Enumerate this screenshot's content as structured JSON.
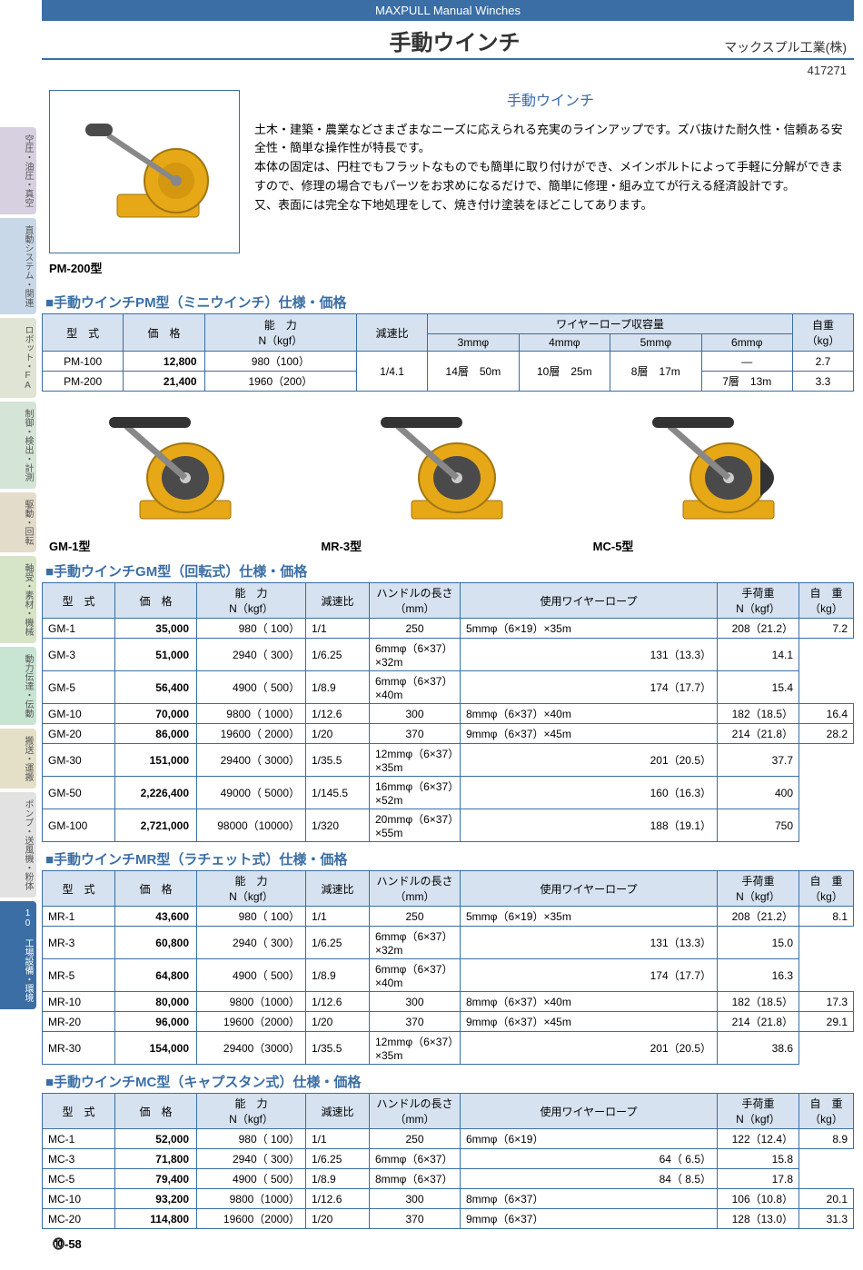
{
  "header": {
    "eng_title": "MAXPULL Manual Winches",
    "jp_title": "手動ウインチ",
    "company": "マックスプル工業(株)",
    "code": "417271"
  },
  "sidebar": {
    "tabs": [
      {
        "label": "空圧・油圧・真空",
        "bg": "#d6d0e0"
      },
      {
        "label": "直動システム・関連",
        "bg": "#c9d8e8"
      },
      {
        "label": "ロボット・FA",
        "bg": "#e0e4d4"
      },
      {
        "label": "制御・検出・計測",
        "bg": "#d4e4d6"
      },
      {
        "label": "駆動・回転",
        "bg": "#e4dccb"
      },
      {
        "label": "軸受・素材・機械",
        "bg": "#d6e4c8"
      },
      {
        "label": "動力伝達・伝動",
        "bg": "#c8e4d2"
      },
      {
        "label": "搬送・運搬",
        "bg": "#e4e0c8"
      },
      {
        "label": "ポンプ・送風機・粉体",
        "bg": "#e2e2e2"
      },
      {
        "label": "工場設備・環境",
        "bg": "#3a6ea5",
        "active": true,
        "num": "10"
      }
    ]
  },
  "intro": {
    "img_label": "PM-200型",
    "title": "手動ウインチ",
    "body": "土木・建築・農業などさまざまなニーズに応えられる充実のラインアップです。ズバ抜けた耐久性・信頼ある安全性・簡単な操作性が特長です。\n本体の固定は、円柱でもフラットなものでも簡単に取り付けができ、メインボルトによって手軽に分解ができますので、修理の場合でもパーツをお求めになるだけで、簡単に修理・組み立てが行える経済設計です。\n又、表面には完全な下地処理をして、焼き付け塗装をほどこしてあります。"
  },
  "pm": {
    "title": "■手動ウインチPM型（ミニウインチ）仕様・価格",
    "headers": {
      "model": "型　式",
      "price": "価　格",
      "cap": "能　力\nN（kgf）",
      "ratio": "減速比",
      "rope": "ワイヤーロープ収容量",
      "weight": "自重\n（kg）",
      "rope_sub": [
        "3mmφ",
        "4mmφ",
        "5mmφ",
        "6mmφ"
      ]
    },
    "rows": [
      {
        "model": "PM-100",
        "price": "12,800",
        "cap": "980（100）",
        "ratio": "1/4.1",
        "r3": "14層　50m",
        "r4": "10層　25m",
        "r5": "8層　17m",
        "r6": "―",
        "weight": "2.7"
      },
      {
        "model": "PM-200",
        "price": "21,400",
        "cap": "1960（200）",
        "ratio": "",
        "r3": "",
        "r4": "",
        "r5": "",
        "r6": "7層　13m",
        "weight": "3.3"
      }
    ]
  },
  "img_row": [
    {
      "label": "GM-1型"
    },
    {
      "label": "MR-3型"
    },
    {
      "label": "MC-5型"
    }
  ],
  "gm": {
    "title": "■手動ウインチGM型（回転式）仕様・価格",
    "headers": {
      "model": "型　式",
      "price": "価　格",
      "cap": "能　力\nN（kgf）",
      "ratio": "減速比",
      "handle": "ハンドルの長さ\n（mm）",
      "rope": "使用ワイヤーロープ",
      "load": "手荷重\nN（kgf）",
      "weight": "自　重\n（kg）"
    },
    "rows": [
      {
        "model": "GM-1",
        "price": "35,000",
        "cap": "980（ 100）",
        "ratio": "1/1",
        "handle": "250",
        "rope": "5mmφ（6×19）×35m",
        "load": "208（21.2）",
        "weight": "7.2"
      },
      {
        "model": "GM-3",
        "price": "51,000",
        "cap": "2940（ 300）",
        "ratio": "1/6.25",
        "handle": "",
        "rope": "6mmφ（6×37）×32m",
        "load": "131（13.3）",
        "weight": "14.1"
      },
      {
        "model": "GM-5",
        "price": "56,400",
        "cap": "4900（ 500）",
        "ratio": "1/8.9",
        "handle": "",
        "rope": "6mmφ（6×37）×40m",
        "load": "174（17.7）",
        "weight": "15.4"
      },
      {
        "model": "GM-10",
        "price": "70,000",
        "cap": "9800（ 1000）",
        "ratio": "1/12.6",
        "handle": "300",
        "rope": "8mmφ（6×37）×40m",
        "load": "182（18.5）",
        "weight": "16.4"
      },
      {
        "model": "GM-20",
        "price": "86,000",
        "cap": "19600（ 2000）",
        "ratio": "1/20",
        "handle": "370",
        "rope": "9mmφ（6×37）×45m",
        "load": "214（21.8）",
        "weight": "28.2"
      },
      {
        "model": "GM-30",
        "price": "151,000",
        "cap": "29400（ 3000）",
        "ratio": "1/35.5",
        "handle": "",
        "rope": "12mmφ（6×37）×35m",
        "load": "201（20.5）",
        "weight": "37.7"
      },
      {
        "model": "GM-50",
        "price": "2,226,400",
        "cap": "49000（ 5000）",
        "ratio": "1/145.5",
        "handle": "",
        "rope": "16mmφ（6×37）×52m",
        "load": "160（16.3）",
        "weight": "400"
      },
      {
        "model": "GM-100",
        "price": "2,721,000",
        "cap": "98000（10000）",
        "ratio": "1/320",
        "handle": "",
        "rope": "20mmφ（6×37）×55m",
        "load": "188（19.1）",
        "weight": "750"
      }
    ],
    "handle_spans": [
      3,
      1,
      4
    ]
  },
  "mr": {
    "title": "■手動ウインチMR型（ラチェット式）仕様・価格",
    "rows": [
      {
        "model": "MR-1",
        "price": "43,600",
        "cap": "980（ 100）",
        "ratio": "1/1",
        "handle": "250",
        "rope": "5mmφ（6×19）×35m",
        "load": "208（21.2）",
        "weight": "8.1"
      },
      {
        "model": "MR-3",
        "price": "60,800",
        "cap": "2940（ 300）",
        "ratio": "1/6.25",
        "handle": "",
        "rope": "6mmφ（6×37）×32m",
        "load": "131（13.3）",
        "weight": "15.0"
      },
      {
        "model": "MR-5",
        "price": "64,800",
        "cap": "4900（ 500）",
        "ratio": "1/8.9",
        "handle": "",
        "rope": "6mmφ（6×37）×40m",
        "load": "174（17.7）",
        "weight": "16.3"
      },
      {
        "model": "MR-10",
        "price": "80,000",
        "cap": "9800（1000）",
        "ratio": "1/12.6",
        "handle": "300",
        "rope": "8mmφ（6×37）×40m",
        "load": "182（18.5）",
        "weight": "17.3"
      },
      {
        "model": "MR-20",
        "price": "96,000",
        "cap": "19600（2000）",
        "ratio": "1/20",
        "handle": "370",
        "rope": "9mmφ（6×37）×45m",
        "load": "214（21.8）",
        "weight": "29.1"
      },
      {
        "model": "MR-30",
        "price": "154,000",
        "cap": "29400（3000）",
        "ratio": "1/35.5",
        "handle": "",
        "rope": "12mmφ（6×37）×35m",
        "load": "201（20.5）",
        "weight": "38.6"
      }
    ],
    "handle_spans": [
      3,
      1,
      2
    ]
  },
  "mc": {
    "title": "■手動ウインチMC型（キャプスタン式）仕様・価格",
    "rows": [
      {
        "model": "MC-1",
        "price": "52,000",
        "cap": "980（ 100）",
        "ratio": "1/1",
        "handle": "250",
        "rope": "6mmφ（6×19）",
        "load": "122（12.4）",
        "weight": "8.9"
      },
      {
        "model": "MC-3",
        "price": "71,800",
        "cap": "2940（ 300）",
        "ratio": "1/6.25",
        "handle": "",
        "rope": "6mmφ（6×37）",
        "load": "64（ 6.5）",
        "weight": "15.8"
      },
      {
        "model": "MC-5",
        "price": "79,400",
        "cap": "4900（ 500）",
        "ratio": "1/8.9",
        "handle": "",
        "rope": "8mmφ（6×37）",
        "load": "84（ 8.5）",
        "weight": "17.8"
      },
      {
        "model": "MC-10",
        "price": "93,200",
        "cap": "9800（1000）",
        "ratio": "1/12.6",
        "handle": "300",
        "rope": "8mmφ（6×37）",
        "load": "106（10.8）",
        "weight": "20.1"
      },
      {
        "model": "MC-20",
        "price": "114,800",
        "cap": "19600（2000）",
        "ratio": "1/20",
        "handle": "370",
        "rope": "9mmφ（6×37）",
        "load": "128（13.0）",
        "weight": "31.3"
      }
    ],
    "handle_spans": [
      3,
      1,
      1
    ]
  },
  "page_num": "⓾-58",
  "colors": {
    "brand": "#3a6ea5",
    "th_bg": "#d6e2f0",
    "winch_yellow": "#e6a817",
    "winch_dark": "#4a4a4a"
  }
}
